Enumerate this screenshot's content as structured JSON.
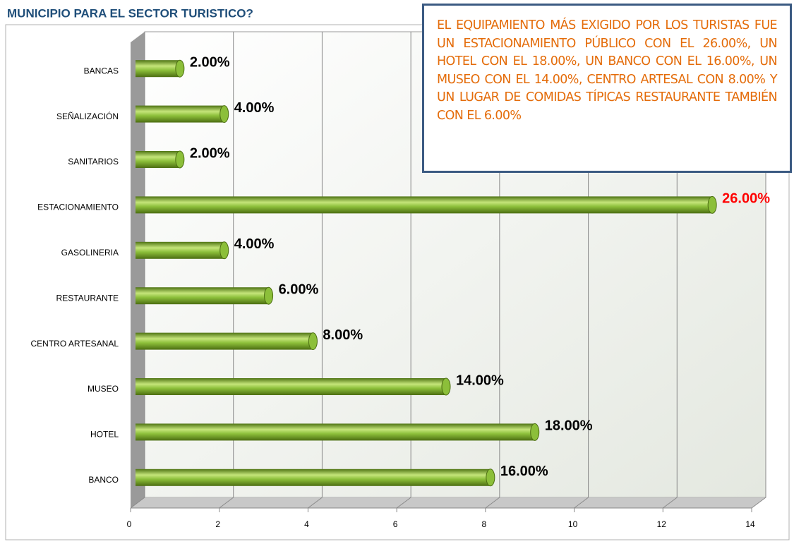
{
  "chart_data": {
    "type": "bar",
    "orientation": "horizontal",
    "title": "MUNICIPIO PARA EL SECTOR TURISTICO?",
    "annotation": "EL EQUIPAMIENTO MÁS EXIGIDO POR LOS TURISTAS FUE UN ESTACIONAMIENTO PÚBLICO CON EL 26.00%, UN HOTEL CON EL 18.00%, UN BANCO CON EL 16.00%, UN MUSEO CON EL 14.00%, CENTRO ARTESAL CON 8.00% Y UN LUGAR  DE COMIDAS TÍPICAS RESTAURANTE TAMBIÉN CON EL 6.00%",
    "categories": [
      "BANCAS",
      "SEÑALIZACIÓN",
      "SANITARIOS",
      "ESTACIONAMIENTO",
      "GASOLINERIA",
      "RESTAURANTE",
      "CENTRO ARTESANAL",
      "MUSEO",
      "HOTEL",
      "BANCO"
    ],
    "values": [
      1,
      2,
      1,
      13,
      2,
      3,
      4,
      7,
      9,
      8
    ],
    "value_labels": [
      "2.00%",
      "4.00%",
      "2.00%",
      "26.00%",
      "4.00%",
      "6.00%",
      "8.00%",
      "14.00%",
      "18.00%",
      "16.00%"
    ],
    "value_label_colors": [
      "#000000",
      "#000000",
      "#000000",
      "#ff0000",
      "#000000",
      "#000000",
      "#000000",
      "#000000",
      "#000000",
      "#000000"
    ],
    "color": "#8cbf3a",
    "xlim": [
      0,
      14
    ],
    "xticks": [
      0,
      2,
      4,
      6,
      8,
      10,
      12,
      14
    ],
    "grid": true
  }
}
